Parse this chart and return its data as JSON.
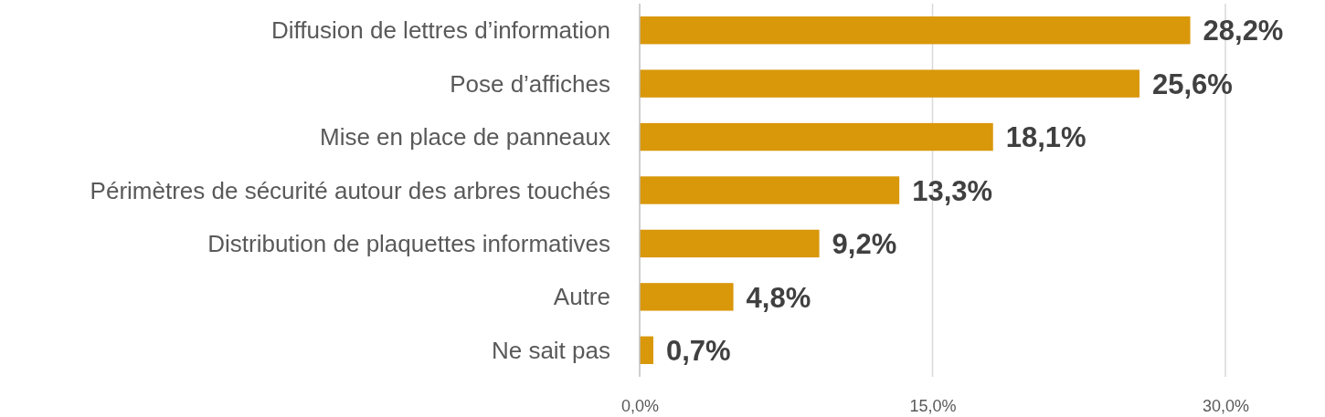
{
  "chart_data": {
    "type": "bar",
    "orientation": "horizontal",
    "categories": [
      "Diffusion de lettres d’information",
      "Pose d’affiches",
      "Mise en place de panneaux",
      "Périmètres de sécurité autour des arbres touchés",
      "Distribution de plaquettes informatives",
      "Autre",
      "Ne sait pas"
    ],
    "values": [
      28.2,
      25.6,
      18.1,
      13.3,
      9.2,
      4.8,
      0.7
    ],
    "value_labels": [
      "28,2%",
      "25,6%",
      "18,1%",
      "13,3%",
      "9,2%",
      "4,8%",
      "0,7%"
    ],
    "color": "#d9970a",
    "xlim": [
      0,
      30
    ],
    "xticks": [
      {
        "value": 0,
        "label": "0,0%"
      },
      {
        "value": 15,
        "label": "15,0%"
      },
      {
        "value": 30,
        "label": "30,0%"
      }
    ],
    "grid": "x"
  }
}
